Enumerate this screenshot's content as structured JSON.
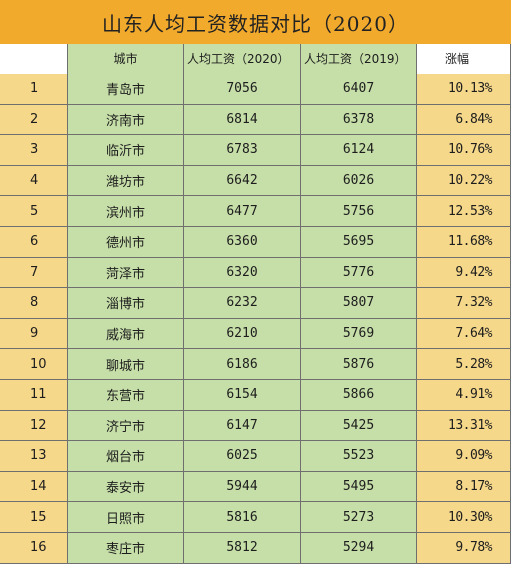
{
  "title": "山东人均工资数据对比（2020）",
  "columns": {
    "rank": "",
    "city": "城市",
    "wage_2020": "人均工资（2020）",
    "wage_2019": "人均工资（2019）",
    "increase": "涨幅"
  },
  "rows": [
    {
      "rank": "1",
      "city": "青岛市",
      "wage_2020": "7056",
      "wage_2019": "6407",
      "increase": "10.13%"
    },
    {
      "rank": "2",
      "city": "济南市",
      "wage_2020": "6814",
      "wage_2019": "6378",
      "increase": "6.84%"
    },
    {
      "rank": "3",
      "city": "临沂市",
      "wage_2020": "6783",
      "wage_2019": "6124",
      "increase": "10.76%"
    },
    {
      "rank": "4",
      "city": "潍坊市",
      "wage_2020": "6642",
      "wage_2019": "6026",
      "increase": "10.22%"
    },
    {
      "rank": "5",
      "city": "滨州市",
      "wage_2020": "6477",
      "wage_2019": "5756",
      "increase": "12.53%"
    },
    {
      "rank": "6",
      "city": "德州市",
      "wage_2020": "6360",
      "wage_2019": "5695",
      "increase": "11.68%"
    },
    {
      "rank": "7",
      "city": "菏泽市",
      "wage_2020": "6320",
      "wage_2019": "5776",
      "increase": "9.42%"
    },
    {
      "rank": "8",
      "city": "淄博市",
      "wage_2020": "6232",
      "wage_2019": "5807",
      "increase": "7.32%"
    },
    {
      "rank": "9",
      "city": "威海市",
      "wage_2020": "6210",
      "wage_2019": "5769",
      "increase": "7.64%"
    },
    {
      "rank": "10",
      "city": "聊城市",
      "wage_2020": "6186",
      "wage_2019": "5876",
      "increase": "5.28%"
    },
    {
      "rank": "11",
      "city": "东营市",
      "wage_2020": "6154",
      "wage_2019": "5866",
      "increase": "4.91%"
    },
    {
      "rank": "12",
      "city": "济宁市",
      "wage_2020": "6147",
      "wage_2019": "5425",
      "increase": "13.31%"
    },
    {
      "rank": "13",
      "city": "烟台市",
      "wage_2020": "6025",
      "wage_2019": "5523",
      "increase": "9.09%"
    },
    {
      "rank": "14",
      "city": "泰安市",
      "wage_2020": "5944",
      "wage_2019": "5495",
      "increase": "8.17%"
    },
    {
      "rank": "15",
      "city": "日照市",
      "wage_2020": "5816",
      "wage_2019": "5273",
      "increase": "10.30%"
    },
    {
      "rank": "16",
      "city": "枣庄市",
      "wage_2020": "5812",
      "wage_2019": "5294",
      "increase": "9.78%"
    }
  ],
  "colors": {
    "title_bg": "#f2aa2c",
    "rank_bg": "#f6d88b",
    "value_bg": "#c6dea8",
    "grid": "#6f6f6f"
  }
}
